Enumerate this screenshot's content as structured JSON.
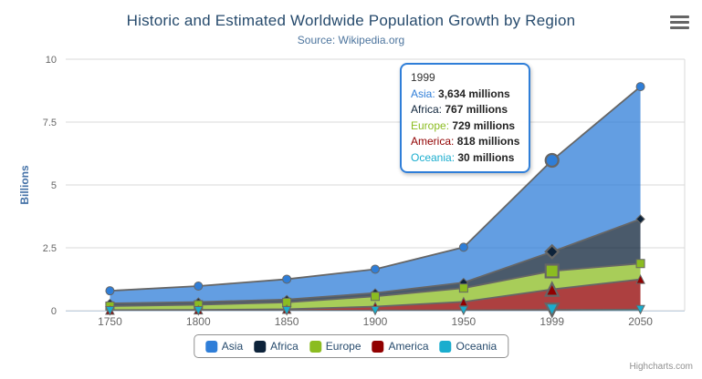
{
  "credits": "Highcharts.com",
  "tooltip": {
    "header": "1999",
    "rows": [
      {
        "name": "Asia",
        "value": "3,634 millions"
      },
      {
        "name": "Africa",
        "value": "767 millions"
      },
      {
        "name": "Europe",
        "value": "729 millions"
      },
      {
        "name": "America",
        "value": "818 millions"
      },
      {
        "name": "Oceania",
        "value": "30 millions"
      }
    ]
  },
  "colors": {
    "grid": "#d8d8d8",
    "axis_line": "#c0d0e0",
    "series_outline": "#666666",
    "tick_label": "#666666",
    "tooltip_border": "#2f7ed8"
  },
  "chart_data": {
    "type": "area",
    "stacking": "normal",
    "title": "Historic and Estimated Worldwide Population Growth by Region",
    "subtitle": "Source: Wikipedia.org",
    "categories": [
      "1750",
      "1800",
      "1850",
      "1900",
      "1950",
      "1999",
      "2050"
    ],
    "unit": "millions",
    "ylabel": "Billions",
    "ylim": [
      0,
      10
    ],
    "yticks": [
      0,
      2.5,
      5,
      7.5,
      10
    ],
    "grid": true,
    "legend_position": "bottom",
    "hover_category_index": 5,
    "series": [
      {
        "name": "Asia",
        "color": "#2f7ed8",
        "marker": "circle",
        "values": [
          502,
          635,
          809,
          947,
          1402,
          3634,
          5268
        ]
      },
      {
        "name": "Africa",
        "color": "#0d233a",
        "marker": "diamond",
        "values": [
          106,
          107,
          111,
          133,
          221,
          767,
          1766
        ]
      },
      {
        "name": "Europe",
        "color": "#8bbc21",
        "marker": "square",
        "values": [
          163,
          203,
          276,
          408,
          547,
          729,
          628
        ]
      },
      {
        "name": "America",
        "color": "#910000",
        "marker": "triangle",
        "values": [
          18,
          31,
          54,
          156,
          339,
          818,
          1201
        ]
      },
      {
        "name": "Oceania",
        "color": "#1aadce",
        "marker": "triangle-down",
        "values": [
          2,
          2,
          2,
          6,
          13,
          30,
          46
        ]
      }
    ]
  }
}
